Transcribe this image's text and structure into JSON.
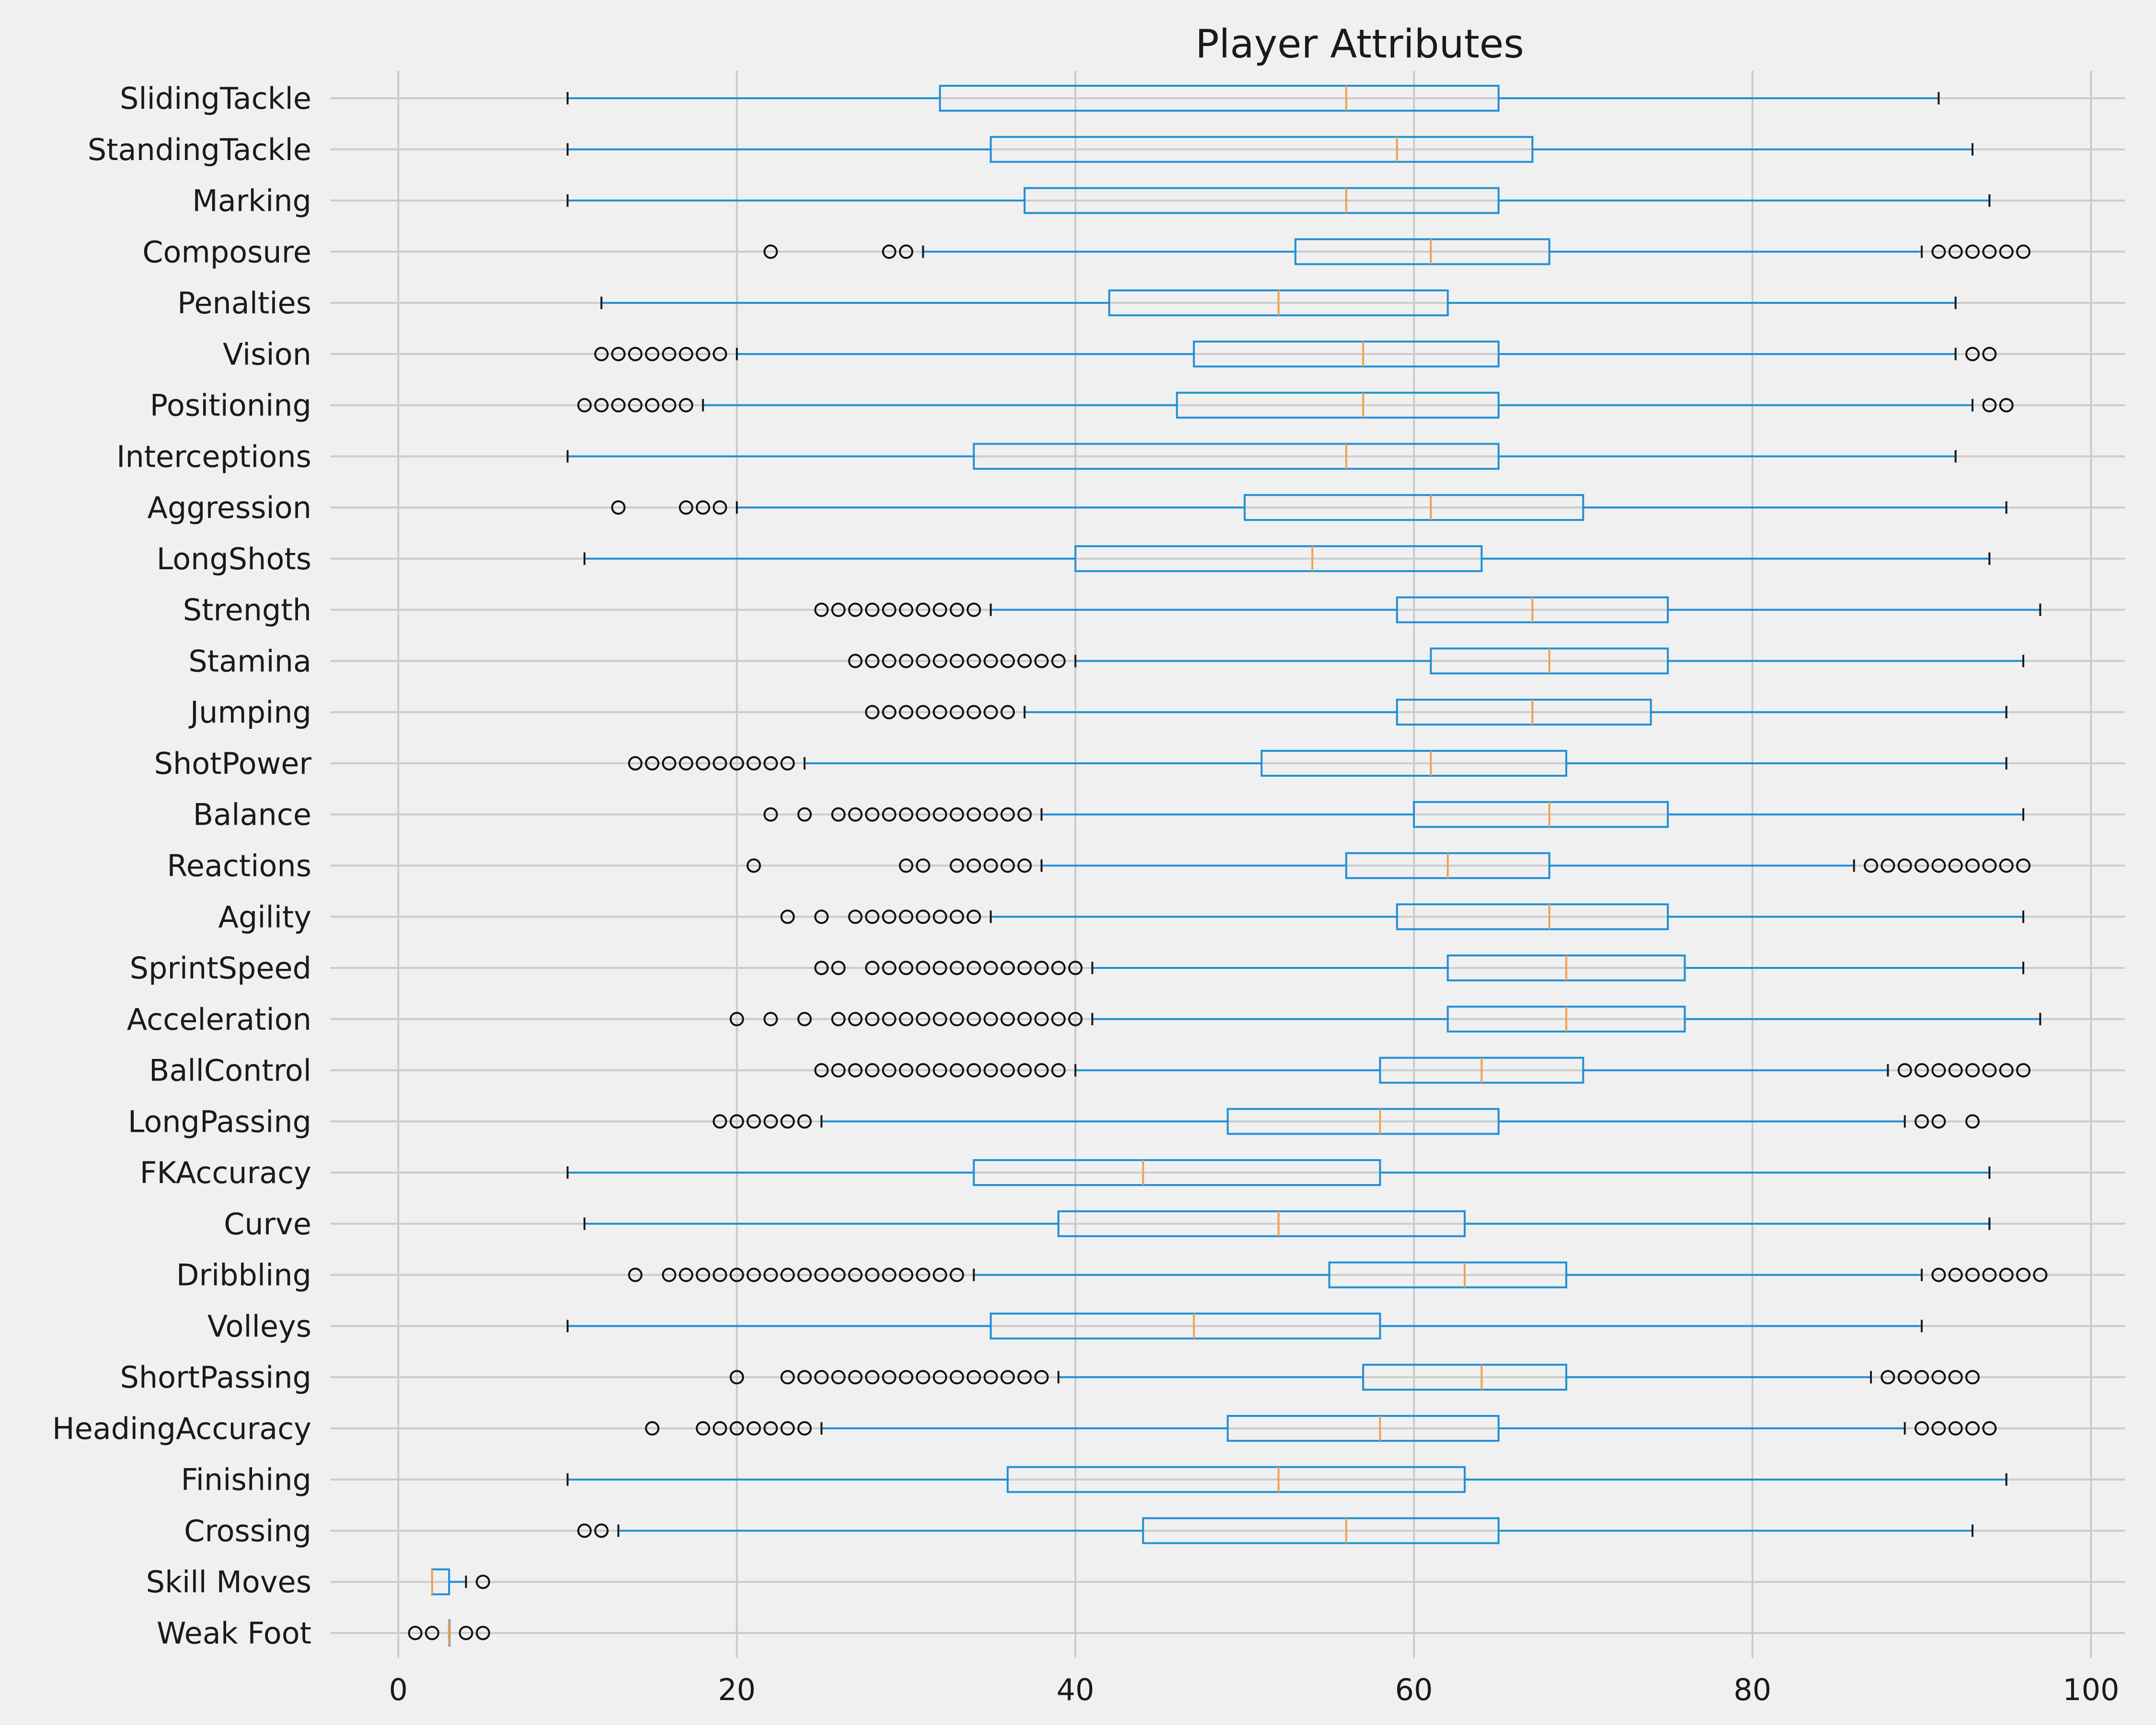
{
  "chart_data": {
    "type": "boxplot",
    "orientation": "horizontal",
    "title": "Player Attributes",
    "xlabel": "",
    "ylabel": "",
    "xlim": [
      -4,
      102
    ],
    "xticks": [
      0,
      20,
      40,
      60,
      80,
      100
    ],
    "grid": true,
    "colors": {
      "box": "#1f8fd6",
      "median": "#f0a050",
      "cap": "#1a1a1a",
      "flier": "#111111",
      "background": "#f0f0f0",
      "grid": "#cbcbcb"
    },
    "series": [
      {
        "name": "SlidingTackle",
        "whislo": 10,
        "q1": 32,
        "med": 56,
        "q3": 65,
        "whishi": 91,
        "fliers": []
      },
      {
        "name": "StandingTackle",
        "whislo": 10,
        "q1": 35,
        "med": 59,
        "q3": 67,
        "whishi": 93,
        "fliers": []
      },
      {
        "name": "Marking",
        "whislo": 10,
        "q1": 37,
        "med": 56,
        "q3": 65,
        "whishi": 94,
        "fliers": []
      },
      {
        "name": "Composure",
        "whislo": 31,
        "q1": 53,
        "med": 61,
        "q3": 68,
        "whishi": 90,
        "fliers": [
          22,
          29,
          30,
          91,
          92,
          93,
          94,
          95,
          96
        ]
      },
      {
        "name": "Penalties",
        "whislo": 12,
        "q1": 42,
        "med": 52,
        "q3": 62,
        "whishi": 92,
        "fliers": []
      },
      {
        "name": "Vision",
        "whislo": 20,
        "q1": 47,
        "med": 57,
        "q3": 65,
        "whishi": 92,
        "fliers": [
          12,
          13,
          14,
          15,
          16,
          17,
          18,
          19,
          93,
          94
        ]
      },
      {
        "name": "Positioning",
        "whislo": 18,
        "q1": 46,
        "med": 57,
        "q3": 65,
        "whishi": 93,
        "fliers": [
          11,
          12,
          13,
          14,
          15,
          16,
          17,
          94,
          95
        ]
      },
      {
        "name": "Interceptions",
        "whislo": 10,
        "q1": 34,
        "med": 56,
        "q3": 65,
        "whishi": 92,
        "fliers": []
      },
      {
        "name": "Aggression",
        "whislo": 20,
        "q1": 50,
        "med": 61,
        "q3": 70,
        "whishi": 95,
        "fliers": [
          13,
          17,
          18,
          19
        ]
      },
      {
        "name": "LongShots",
        "whislo": 11,
        "q1": 40,
        "med": 54,
        "q3": 64,
        "whishi": 94,
        "fliers": []
      },
      {
        "name": "Strength",
        "whislo": 35,
        "q1": 59,
        "med": 67,
        "q3": 75,
        "whishi": 97,
        "fliers": [
          25,
          26,
          27,
          28,
          29,
          30,
          31,
          32,
          33,
          34
        ]
      },
      {
        "name": "Stamina",
        "whislo": 40,
        "q1": 61,
        "med": 68,
        "q3": 75,
        "whishi": 96,
        "fliers": [
          27,
          28,
          29,
          30,
          31,
          32,
          33,
          34,
          35,
          36,
          37,
          38,
          39
        ]
      },
      {
        "name": "Jumping",
        "whislo": 37,
        "q1": 59,
        "med": 67,
        "q3": 74,
        "whishi": 95,
        "fliers": [
          28,
          29,
          30,
          31,
          32,
          33,
          34,
          35,
          36
        ]
      },
      {
        "name": "ShotPower",
        "whislo": 24,
        "q1": 51,
        "med": 61,
        "q3": 69,
        "whishi": 95,
        "fliers": [
          14,
          15,
          16,
          17,
          18,
          19,
          20,
          21,
          22,
          23
        ]
      },
      {
        "name": "Balance",
        "whislo": 38,
        "q1": 60,
        "med": 68,
        "q3": 75,
        "whishi": 96,
        "fliers": [
          22,
          24,
          26,
          27,
          28,
          29,
          30,
          31,
          32,
          33,
          34,
          35,
          36,
          37
        ]
      },
      {
        "name": "Reactions",
        "whislo": 38,
        "q1": 56,
        "med": 62,
        "q3": 68,
        "whishi": 86,
        "fliers": [
          21,
          30,
          31,
          33,
          34,
          35,
          36,
          37,
          87,
          88,
          89,
          90,
          91,
          92,
          93,
          94,
          95,
          96
        ]
      },
      {
        "name": "Agility",
        "whislo": 35,
        "q1": 59,
        "med": 68,
        "q3": 75,
        "whishi": 96,
        "fliers": [
          23,
          25,
          27,
          28,
          29,
          30,
          31,
          32,
          33,
          34
        ]
      },
      {
        "name": "SprintSpeed",
        "whislo": 41,
        "q1": 62,
        "med": 69,
        "q3": 76,
        "whishi": 96,
        "fliers": [
          25,
          26,
          28,
          29,
          30,
          31,
          32,
          33,
          34,
          35,
          36,
          37,
          38,
          39,
          40
        ]
      },
      {
        "name": "Acceleration",
        "whislo": 41,
        "q1": 62,
        "med": 69,
        "q3": 76,
        "whishi": 97,
        "fliers": [
          20,
          22,
          24,
          26,
          27,
          28,
          29,
          30,
          31,
          32,
          33,
          34,
          35,
          36,
          37,
          38,
          39,
          40
        ]
      },
      {
        "name": "BallControl",
        "whislo": 40,
        "q1": 58,
        "med": 64,
        "q3": 70,
        "whishi": 88,
        "fliers": [
          25,
          26,
          27,
          28,
          29,
          30,
          31,
          32,
          33,
          34,
          35,
          36,
          37,
          38,
          39,
          89,
          90,
          91,
          92,
          93,
          94,
          95,
          96
        ]
      },
      {
        "name": "LongPassing",
        "whislo": 25,
        "q1": 49,
        "med": 58,
        "q3": 65,
        "whishi": 89,
        "fliers": [
          19,
          20,
          21,
          22,
          23,
          24,
          90,
          91,
          93
        ]
      },
      {
        "name": "FKAccuracy",
        "whislo": 10,
        "q1": 34,
        "med": 44,
        "q3": 58,
        "whishi": 94,
        "fliers": []
      },
      {
        "name": "Curve",
        "whislo": 11,
        "q1": 39,
        "med": 52,
        "q3": 63,
        "whishi": 94,
        "fliers": []
      },
      {
        "name": "Dribbling",
        "whislo": 34,
        "q1": 55,
        "med": 63,
        "q3": 69,
        "whishi": 90,
        "fliers": [
          14,
          16,
          17,
          18,
          19,
          20,
          21,
          22,
          23,
          24,
          25,
          26,
          27,
          28,
          29,
          30,
          31,
          32,
          33,
          91,
          92,
          93,
          94,
          95,
          96,
          97
        ]
      },
      {
        "name": "Volleys",
        "whislo": 10,
        "q1": 35,
        "med": 47,
        "q3": 58,
        "whishi": 90,
        "fliers": []
      },
      {
        "name": "ShortPassing",
        "whislo": 39,
        "q1": 57,
        "med": 64,
        "q3": 69,
        "whishi": 87,
        "fliers": [
          20,
          23,
          24,
          25,
          26,
          27,
          28,
          29,
          30,
          31,
          32,
          33,
          34,
          35,
          36,
          37,
          38,
          88,
          89,
          90,
          91,
          92,
          93
        ]
      },
      {
        "name": "HeadingAccuracy",
        "whislo": 25,
        "q1": 49,
        "med": 58,
        "q3": 65,
        "whishi": 89,
        "fliers": [
          15,
          18,
          19,
          20,
          21,
          22,
          23,
          24,
          90,
          91,
          92,
          93,
          94
        ]
      },
      {
        "name": "Finishing",
        "whislo": 10,
        "q1": 36,
        "med": 52,
        "q3": 63,
        "whishi": 95,
        "fliers": []
      },
      {
        "name": "Crossing",
        "whislo": 13,
        "q1": 44,
        "med": 56,
        "q3": 65,
        "whishi": 93,
        "fliers": [
          11,
          12
        ]
      },
      {
        "name": "Skill Moves",
        "whislo": 2,
        "q1": 2,
        "med": 2,
        "q3": 3,
        "whishi": 4,
        "fliers": [
          5
        ]
      },
      {
        "name": "Weak Foot",
        "whislo": 3,
        "q1": 3,
        "med": 3,
        "q3": 3,
        "whishi": 3,
        "fliers": [
          1,
          2,
          4,
          5
        ]
      }
    ]
  }
}
